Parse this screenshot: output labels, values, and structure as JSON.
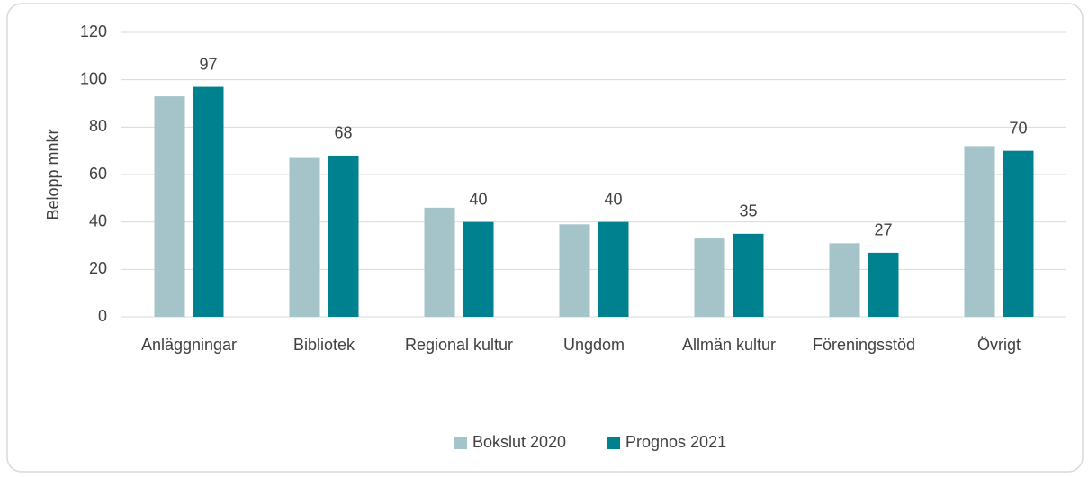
{
  "chart_data": {
    "type": "bar",
    "categories": [
      "Anläggningar",
      "Bibliotek",
      "Regional kultur",
      "Ungdom",
      "Allmän kultur",
      "Föreningsstöd",
      "Övrigt"
    ],
    "series": [
      {
        "name": "Bokslut 2020",
        "color": "#a5c4c9",
        "values": [
          93,
          67,
          46,
          39,
          33,
          31,
          72
        ],
        "show_labels": false
      },
      {
        "name": "Prognos 2021",
        "color": "#00818f",
        "values": [
          97,
          68,
          40,
          40,
          35,
          27,
          70
        ],
        "show_labels": true
      }
    ],
    "y_label": "Belopp mnkr",
    "ylim": [
      0,
      120
    ],
    "yticks": [
      0,
      20,
      40,
      60,
      80,
      100,
      120
    ],
    "grid": true,
    "legend": "bottom"
  }
}
